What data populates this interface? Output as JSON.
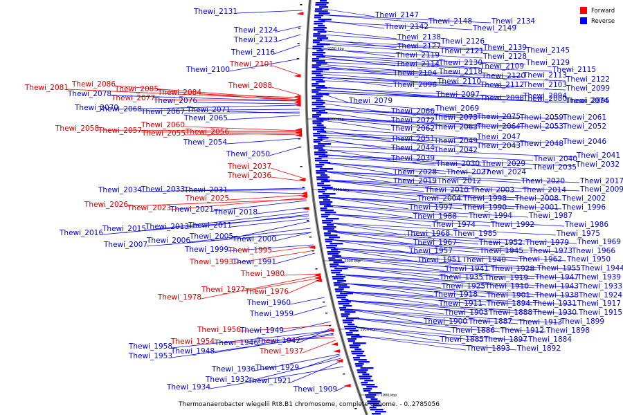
{
  "caption": "Thermoanaerobacter wiegelii Rt8.B1 chromosome, complete genome. - 0..2785056",
  "legend": [
    {
      "label": "Forward",
      "color": "#ff0000"
    },
    {
      "label": "Reverse",
      "color": "#0000ff"
    }
  ],
  "colors": {
    "forward": "#cc0000",
    "reverse": "#0000cc",
    "forward_arrow": "#ff0000",
    "reverse_arrow": "#0000ff"
  },
  "ticks": [
    "2150 kbp",
    "2100 kbp",
    "2050 kbp",
    "2000 kbp",
    "1950 kbp",
    "1900 kbp"
  ],
  "left_genes": [
    {
      "name": "Thewi_2131",
      "strand": "reverse"
    },
    {
      "name": "Thewi_2124",
      "strand": "reverse"
    },
    {
      "name": "Thewi_2123",
      "strand": "reverse"
    },
    {
      "name": "Thewi_2116",
      "strand": "reverse"
    },
    {
      "name": "Thewi_2101",
      "strand": "forward"
    },
    {
      "name": "Thewi_2100",
      "strand": "reverse"
    },
    {
      "name": "Thewi_2088",
      "strand": "forward"
    },
    {
      "name": "Thewi_2081",
      "strand": "forward"
    },
    {
      "name": "Thewi_2086",
      "strand": "forward"
    },
    {
      "name": "Thewi_2078",
      "strand": "reverse"
    },
    {
      "name": "Thewi_2085",
      "strand": "forward"
    },
    {
      "name": "Thewi_2084",
      "strand": "forward"
    },
    {
      "name": "Thewi_2077",
      "strand": "forward"
    },
    {
      "name": "Thewi_2076",
      "strand": "reverse"
    },
    {
      "name": "Thewi_2070",
      "strand": "reverse"
    },
    {
      "name": "Thewi_2068",
      "strand": "reverse"
    },
    {
      "name": "Thewi_2067",
      "strand": "reverse"
    },
    {
      "name": "Thewi_2071",
      "strand": "reverse"
    },
    {
      "name": "Thewi_2065",
      "strand": "reverse"
    },
    {
      "name": "Thewi_2060",
      "strand": "forward"
    },
    {
      "name": "Thewi_2058",
      "strand": "forward"
    },
    {
      "name": "Thewi_2057",
      "strand": "forward"
    },
    {
      "name": "Thewi_2055",
      "strand": "forward"
    },
    {
      "name": "Thewi_2056",
      "strand": "forward"
    },
    {
      "name": "Thewi_2054",
      "strand": "reverse"
    },
    {
      "name": "Thewi_2050",
      "strand": "reverse"
    },
    {
      "name": "Thewi_2037",
      "strand": "forward"
    },
    {
      "name": "Thewi_2036",
      "strand": "forward"
    },
    {
      "name": "Thewi_2034",
      "strand": "reverse"
    },
    {
      "name": "Thewi_2033",
      "strand": "reverse"
    },
    {
      "name": "Thewi_2031",
      "strand": "reverse"
    },
    {
      "name": "Thewi_2025",
      "strand": "forward"
    },
    {
      "name": "Thewi_2026",
      "strand": "forward"
    },
    {
      "name": "Thewi_2023",
      "strand": "forward"
    },
    {
      "name": "Thewi_2021",
      "strand": "reverse"
    },
    {
      "name": "Thewi_2018",
      "strand": "reverse"
    },
    {
      "name": "Thewi_2015",
      "strand": "reverse"
    },
    {
      "name": "Thewi_2013",
      "strand": "reverse"
    },
    {
      "name": "Thewi_2011",
      "strand": "reverse"
    },
    {
      "name": "Thewi_2016",
      "strand": "reverse"
    },
    {
      "name": "Thewi_2005",
      "strand": "reverse"
    },
    {
      "name": "Thewi_2006",
      "strand": "reverse"
    },
    {
      "name": "Thewi_2000",
      "strand": "reverse"
    },
    {
      "name": "Thewi_2007",
      "strand": "reverse"
    },
    {
      "name": "Thewi_1999",
      "strand": "reverse"
    },
    {
      "name": "Thewi_1995",
      "strand": "forward"
    },
    {
      "name": "Thewi_1993",
      "strand": "forward"
    },
    {
      "name": "Thewi_1991",
      "strand": "reverse"
    },
    {
      "name": "Thewi_1980",
      "strand": "forward"
    },
    {
      "name": "Thewi_1977",
      "strand": "forward"
    },
    {
      "name": "Thewi_1976",
      "strand": "forward"
    },
    {
      "name": "Thewi_1978",
      "strand": "forward"
    },
    {
      "name": "Thewi_1960",
      "strand": "reverse"
    },
    {
      "name": "Thewi_1959",
      "strand": "reverse"
    },
    {
      "name": "Thewi_1956",
      "strand": "forward"
    },
    {
      "name": "Thewi_1949",
      "strand": "reverse"
    },
    {
      "name": "Thewi_1954",
      "strand": "forward"
    },
    {
      "name": "Thewi_1946",
      "strand": "reverse"
    },
    {
      "name": "Thewi_1942",
      "strand": "reverse"
    },
    {
      "name": "Thewi_1958",
      "strand": "reverse"
    },
    {
      "name": "Thewi_1948",
      "strand": "reverse"
    },
    {
      "name": "Thewi_1937",
      "strand": "forward"
    },
    {
      "name": "Thewi_1953",
      "strand": "reverse"
    },
    {
      "name": "Thewi_1936",
      "strand": "reverse"
    },
    {
      "name": "Thewi_1929",
      "strand": "reverse"
    },
    {
      "name": "Thewi_1932",
      "strand": "reverse"
    },
    {
      "name": "Thewi_1921",
      "strand": "reverse"
    },
    {
      "name": "Thewi_1934",
      "strand": "reverse"
    },
    {
      "name": "Thewi_1909",
      "strand": "reverse"
    }
  ],
  "right_genes": [
    "Thewi_2147",
    "Thewi_2148",
    "Thewi_2142",
    "Thewi_2149",
    "Thewi_2134",
    "Thewi_2138",
    "Thewi_2126",
    "Thewi_2139",
    "Thewi_2145",
    "Thewi_2127",
    "Thewi_2121",
    "Thewi_2128",
    "Thewi_2129",
    "Thewi_2115",
    "Thewi_2119",
    "Thewi_2130",
    "Thewi_2109",
    "Thewi_2113",
    "Thewi_2122",
    "Thewi_2114",
    "Thewi_2118",
    "Thewi_2120",
    "Thewi_2103",
    "Thewi_2099",
    "Thewi_2104",
    "Thewi_2110",
    "Thewi_2112",
    "Thewi_2094",
    "Thewi_2095",
    "Thewi_2096",
    "Thewi_2097",
    "Thewi_2098",
    "Thewi_2080",
    "Thewi_2074",
    "Thewi_2079",
    "Thewi_2066",
    "Thewi_2069",
    "Thewi_2072",
    "Thewi_2073",
    "Thewi_2075",
    "Thewi_2059",
    "Thewi_2061",
    "Thewi_2062",
    "Thewi_2063",
    "Thewi_2064",
    "Thewi_2053",
    "Thewi_2052",
    "Thewi_2051",
    "Thewi_2049",
    "Thewi_2047",
    "Thewi_2048",
    "Thewi_2046",
    "Thewi_2044",
    "Thewi_2042",
    "Thewi_2043",
    "Thewi_2040",
    "Thewi_2041",
    "Thewi_2039",
    "Thewi_2030",
    "Thewi_2029",
    "Thewi_2035",
    "Thewi_2032",
    "Thewi_2028",
    "Thewi_2027",
    "Thewi_2024",
    "Thewi_2019",
    "Thewi_2012",
    "Thewi_2020",
    "Thewi_2017",
    "Thewi_2010",
    "Thewi_2003",
    "Thewi_2014",
    "Thewi_2009",
    "Thewi_2004",
    "Thewi_1998",
    "Thewi_2008",
    "Thewi_2002",
    "Thewi_1997",
    "Thewi_1990",
    "Thewi_2001",
    "Thewi_1996",
    "Thewi_1988",
    "Thewi_1994",
    "Thewi_1987",
    "Thewi_1974",
    "Thewi_1992",
    "Thewi_1986",
    "Thewi_1968",
    "Thewi_1985",
    "Thewi_1975",
    "Thewi_1967",
    "Thewi_1952",
    "Thewi_1979",
    "Thewi_1969",
    "Thewi_1957",
    "Thewi_1945",
    "Thewi_1973",
    "Thewi_1966",
    "Thewi_1951",
    "Thewi_1940",
    "Thewi_1962",
    "Thewi_1950",
    "Thewi_1941",
    "Thewi_1928",
    "Thewi_1955",
    "Thewi_1944",
    "Thewi_1935",
    "Thewi_1919",
    "Thewi_1947",
    "Thewi_1939",
    "Thewi_1925",
    "Thewi_1910",
    "Thewi_1943",
    "Thewi_1933",
    "Thewi_1918",
    "Thewi_1901",
    "Thewi_1938",
    "Thewi_1924",
    "Thewi_1911",
    "Thewi_1894",
    "Thewi_1931",
    "Thewi_1917",
    "Thewi_1903",
    "Thewi_1888",
    "Thewi_1930",
    "Thewi_1915",
    "Thewi_1900",
    "Thewi_1887",
    "Thewi_1913",
    "Thewi_1899",
    "Thewi_1886",
    "Thewi_1912",
    "Thewi_1898",
    "Thewi_1885",
    "Thewi_1897",
    "Thewi_1884",
    "Thewi_1893",
    "Thewi_1892"
  ]
}
